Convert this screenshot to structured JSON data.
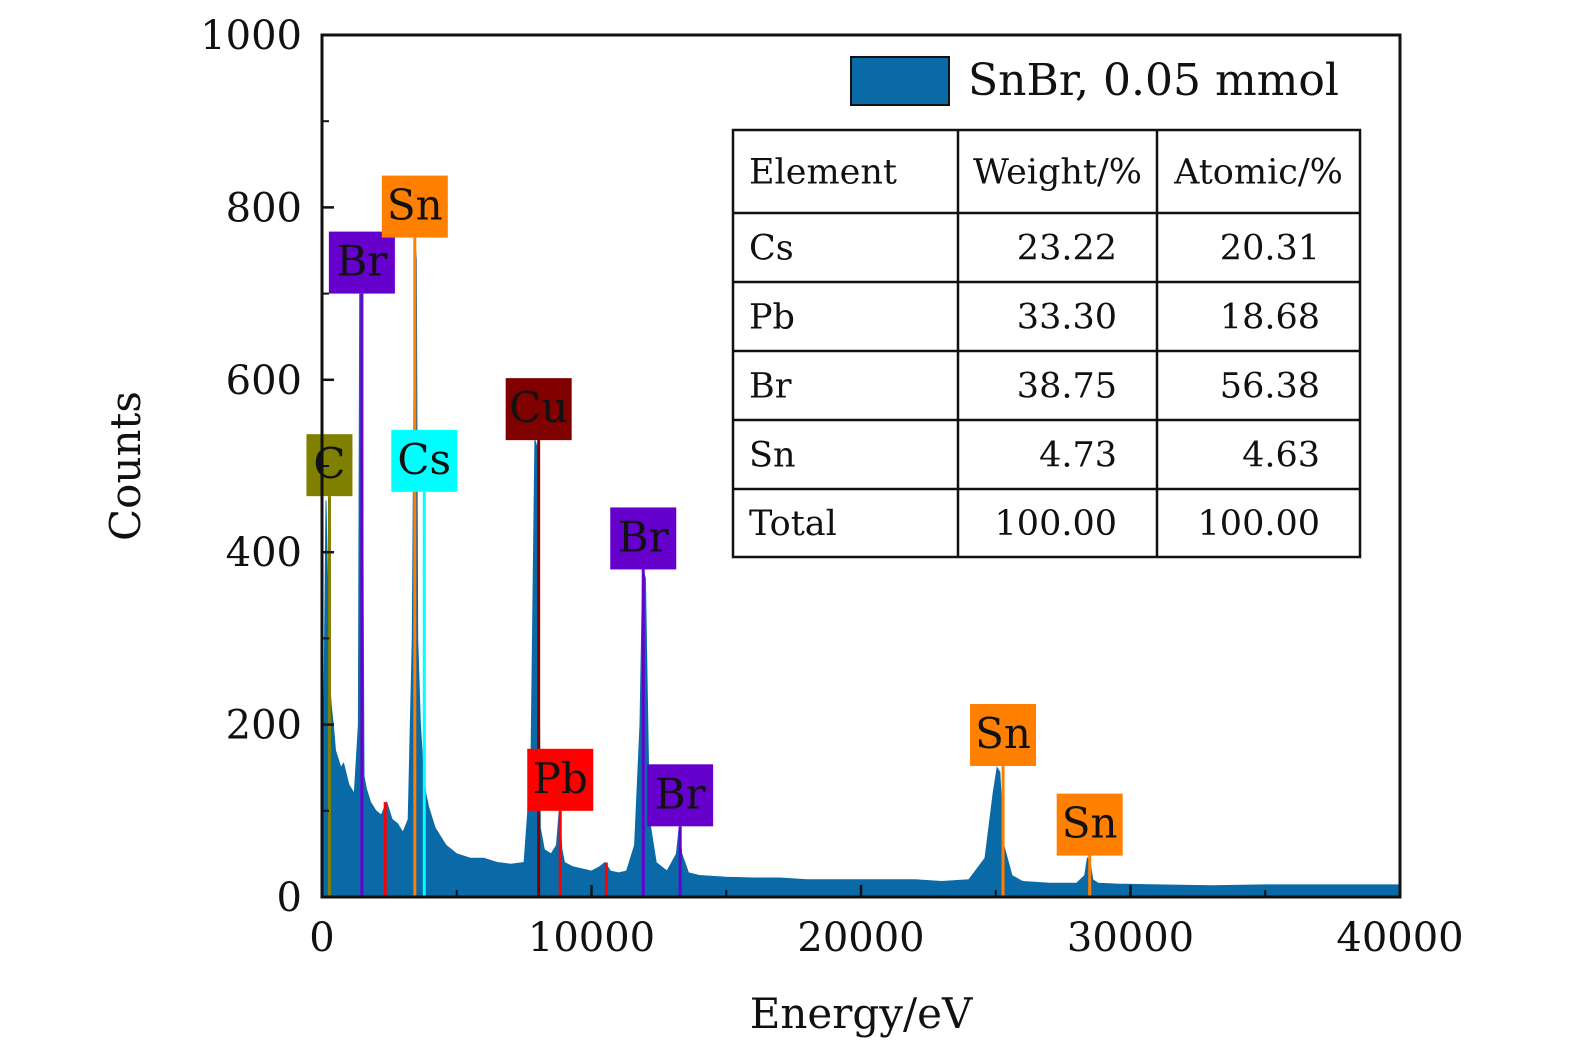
{
  "chart_data": {
    "type": "area",
    "title": "",
    "xlabel": "Energy/eV",
    "ylabel": "Counts",
    "xlim": [
      0,
      40000
    ],
    "ylim": [
      0,
      1000
    ],
    "x_ticks": [
      0,
      10000,
      20000,
      30000,
      40000
    ],
    "y_ticks": [
      0,
      200,
      400,
      600,
      800,
      1000
    ],
    "x_tick_labels": [
      "0",
      "10000",
      "20000",
      "30000",
      "40000"
    ],
    "y_tick_labels": [
      "0",
      "200",
      "400",
      "600",
      "800",
      "1000"
    ],
    "grid": false,
    "legend": {
      "position": "top-right",
      "entries": [
        "SnBr, 0.05 mmol"
      ]
    },
    "series": [
      {
        "name": "SnBr, 0.05 mmol",
        "color": "#0a6aa8",
        "x": [
          0,
          150,
          280,
          350,
          420,
          500,
          600,
          700,
          800,
          1000,
          1200,
          1350,
          1400,
          1480,
          1560,
          1650,
          1800,
          2000,
          2200,
          2400,
          2500,
          2600,
          2800,
          3000,
          3200,
          3350,
          3450,
          3500,
          3550,
          3650,
          3750,
          3850,
          3950,
          4050,
          4200,
          4400,
          4600,
          5000,
          5500,
          6000,
          6500,
          7000,
          7500,
          7750,
          7900,
          8000,
          8100,
          8250,
          8500,
          8700,
          8800,
          8900,
          9000,
          9300,
          9600,
          10000,
          10300,
          10500,
          10600,
          10700,
          11000,
          11300,
          11600,
          11800,
          11900,
          12000,
          12150,
          12400,
          12800,
          13150,
          13250,
          13350,
          13600,
          14000,
          15000,
          16000,
          17000,
          18000,
          19000,
          20000,
          21000,
          22000,
          23000,
          24000,
          24600,
          24900,
          25050,
          25150,
          25300,
          25600,
          26000,
          27000,
          28000,
          28300,
          28400,
          28500,
          28600,
          28800,
          29500,
          31000,
          33000,
          35000,
          37000,
          39000,
          40000
        ],
        "values": [
          0,
          460,
          250,
          220,
          200,
          170,
          160,
          150,
          155,
          130,
          120,
          200,
          700,
          690,
          140,
          125,
          110,
          100,
          95,
          110,
          100,
          90,
          85,
          75,
          90,
          300,
          760,
          740,
          300,
          200,
          150,
          120,
          105,
          95,
          80,
          70,
          60,
          50,
          45,
          45,
          40,
          38,
          40,
          150,
          530,
          520,
          80,
          55,
          50,
          60,
          100,
          55,
          40,
          35,
          33,
          30,
          35,
          40,
          35,
          30,
          28,
          30,
          60,
          200,
          380,
          370,
          90,
          40,
          30,
          50,
          80,
          50,
          28,
          25,
          23,
          22,
          22,
          20,
          20,
          20,
          20,
          20,
          18,
          20,
          45,
          120,
          150,
          145,
          60,
          25,
          18,
          16,
          16,
          25,
          45,
          40,
          20,
          16,
          15,
          14,
          13,
          14,
          14,
          14,
          14
        ]
      }
    ],
    "peak_labels": [
      {
        "element": "C",
        "energy": 277,
        "height": 465,
        "color": "#808000"
      },
      {
        "element": "Br",
        "energy": 1480,
        "height": 700,
        "color": "#6600cc"
      },
      {
        "element": "Br",
        "energy": 11920,
        "height": 380,
        "color": "#6600cc"
      },
      {
        "element": "Br",
        "energy": 13290,
        "height": 82,
        "color": "#6600cc"
      },
      {
        "element": "Sn",
        "energy": 3444,
        "height": 765,
        "color": "#ff8000"
      },
      {
        "element": "Sn",
        "energy": 25271,
        "height": 152,
        "color": "#ff8000"
      },
      {
        "element": "Sn",
        "energy": 28486,
        "height": 48,
        "color": "#ff8000"
      },
      {
        "element": "Cs",
        "energy": 3795,
        "height": 470,
        "color": "#00ffff"
      },
      {
        "element": "Cu",
        "energy": 8040,
        "height": 530,
        "color": "#800000"
      },
      {
        "element": "Pb",
        "energy": 8840,
        "height": 100,
        "color": "#ff0000"
      }
    ],
    "minor_markers": [
      {
        "energy": 2345,
        "height": 110,
        "color": "#ff0000"
      },
      {
        "energy": 10551,
        "height": 40,
        "color": "#ff0000"
      }
    ],
    "table": {
      "headers": [
        "Element",
        "Weight/%",
        "Atomic/%"
      ],
      "rows": [
        [
          "Cs",
          "23.22",
          "20.31"
        ],
        [
          "Pb",
          "33.30",
          "18.68"
        ],
        [
          "Br",
          "38.75",
          "56.38"
        ],
        [
          "Sn",
          "4.73",
          "4.63"
        ],
        [
          "Total",
          "100.00",
          "100.00"
        ]
      ]
    }
  }
}
